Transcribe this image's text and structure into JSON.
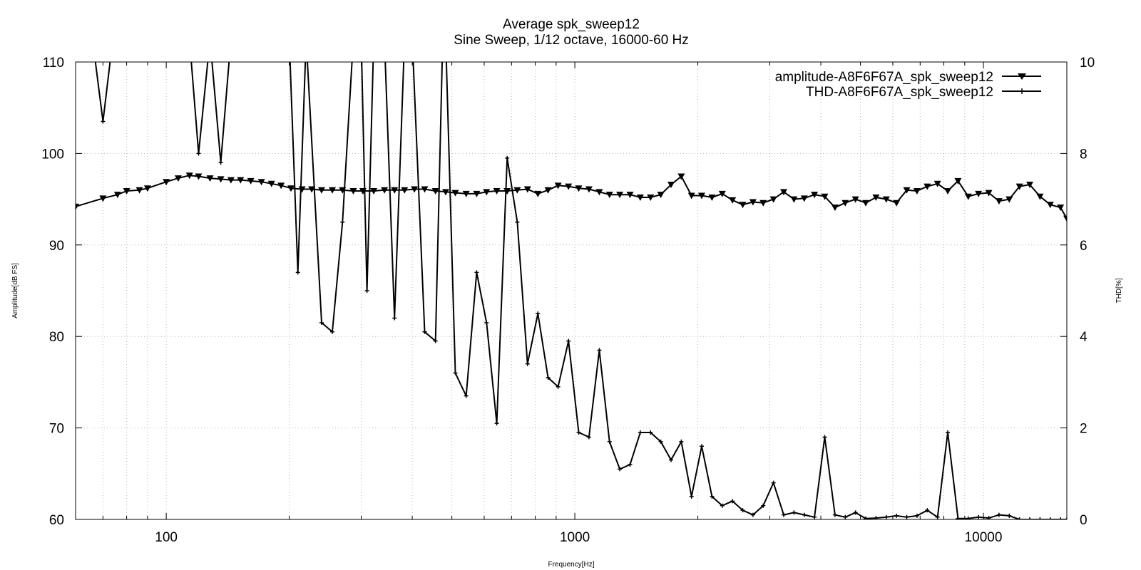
{
  "chart_data": {
    "type": "line",
    "title": "Average spk_sweep12",
    "subtitle": "Sine Sweep, 1/12 octave, 16000-60 Hz",
    "xlabel": "Frequency[Hz]",
    "ylabel": "Amplitude[dB FS]",
    "y2label": "THD[%]",
    "x_scale": "log",
    "xlim": [
      60,
      16000
    ],
    "ylim": [
      60,
      110
    ],
    "y2lim": [
      0,
      10
    ],
    "x_ticks": [
      100,
      1000,
      10000
    ],
    "y_ticks": [
      60,
      70,
      80,
      90,
      100,
      110
    ],
    "y2_ticks": [
      0,
      2,
      4,
      6,
      8,
      10
    ],
    "grid": true,
    "legend_position": "top-right",
    "series": [
      {
        "name": "amplitude-A8F6F67A_spk_sweep12",
        "axis": "left",
        "marker": "triangle-down",
        "x": [
          60,
          70,
          76,
          80,
          86,
          90,
          100,
          107,
          114,
          120,
          128,
          136,
          144,
          152,
          161,
          171,
          181,
          191,
          202,
          215,
          227,
          240,
          255,
          270,
          287,
          303,
          322,
          342,
          362,
          383,
          405,
          429,
          456,
          483,
          510,
          542,
          575,
          608,
          644,
          683,
          723,
          766,
          812,
          860,
          910,
          965,
          1022,
          1083,
          1148,
          1216,
          1288,
          1365,
          1446,
          1532,
          1623,
          1720,
          1822,
          1930,
          2044,
          2166,
          2295,
          2431,
          2576,
          2729,
          2891,
          3063,
          3245,
          3438,
          3643,
          3859,
          4089,
          4332,
          4590,
          4862,
          5152,
          5458,
          5783,
          6127,
          6491,
          6877,
          7286,
          7720,
          8179,
          8665,
          9180,
          9726,
          10305,
          10917,
          11567,
          12254,
          12983,
          13755,
          14573,
          15440,
          16000
        ],
        "values": [
          94.2,
          95.1,
          95.5,
          95.9,
          96.0,
          96.2,
          96.9,
          97.3,
          97.6,
          97.5,
          97.3,
          97.2,
          97.1,
          97.1,
          97.0,
          96.9,
          96.7,
          96.5,
          96.2,
          96.1,
          96.1,
          96.0,
          96.0,
          96.0,
          95.9,
          95.9,
          95.9,
          96.0,
          96.0,
          96.0,
          96.1,
          96.1,
          95.9,
          95.8,
          95.7,
          95.6,
          95.6,
          95.8,
          95.9,
          95.9,
          96.0,
          96.1,
          95.6,
          96.0,
          96.5,
          96.4,
          96.2,
          96.1,
          95.8,
          95.5,
          95.5,
          95.5,
          95.2,
          95.2,
          95.5,
          96.6,
          97.5,
          95.4,
          95.4,
          95.2,
          95.6,
          94.9,
          94.4,
          94.7,
          94.6,
          95.0,
          95.8,
          95.0,
          95.1,
          95.5,
          95.3,
          94.1,
          94.6,
          95.0,
          94.6,
          95.2,
          95.0,
          94.6,
          96.0,
          95.9,
          96.4,
          96.7,
          95.9,
          97.0,
          95.3,
          95.6,
          95.7,
          94.8,
          95.0,
          96.4,
          96.6,
          95.3,
          94.4,
          94.1,
          92.9
        ]
      },
      {
        "name": "THD-A8F6F67A_spk_sweep12",
        "axis": "right",
        "marker": "plus",
        "x": [
          66,
          70,
          74,
          114,
          120,
          128,
          136,
          144,
          200,
          210,
          220,
          240,
          255,
          270,
          287,
          300,
          310,
          322,
          342,
          362,
          383,
          400,
          429,
          456,
          475,
          483,
          510,
          542,
          575,
          608,
          644,
          683,
          723,
          766,
          812,
          860,
          910,
          965,
          1022,
          1083,
          1148,
          1216,
          1288,
          1365,
          1446,
          1532,
          1623,
          1720,
          1822,
          1930,
          2044,
          2166,
          2295,
          2431,
          2576,
          2729,
          2891,
          3063,
          3245,
          3438,
          3643,
          3859,
          4089,
          4332,
          4590,
          4862,
          5152,
          5458,
          5783,
          6127,
          6491,
          6877,
          7286,
          7720,
          8179,
          8665,
          9180,
          9726,
          10305,
          10917,
          11567,
          12254,
          12983,
          13755,
          14573,
          15440,
          16000
        ],
        "values": [
          10.5,
          8.7,
          10.5,
          10.5,
          8.0,
          10.5,
          7.8,
          10.5,
          10.5,
          5.4,
          10.5,
          4.3,
          4.1,
          6.5,
          10.5,
          10.5,
          5.0,
          10.5,
          10.5,
          4.4,
          10.5,
          10.5,
          4.1,
          3.9,
          10.5,
          10.5,
          3.2,
          2.7,
          5.4,
          4.3,
          2.1,
          7.9,
          6.5,
          3.4,
          4.5,
          3.1,
          2.9,
          3.9,
          1.9,
          1.8,
          3.7,
          1.7,
          1.1,
          1.2,
          1.9,
          1.9,
          1.7,
          1.3,
          1.7,
          0.5,
          1.6,
          0.5,
          0.3,
          0.4,
          0.2,
          0.1,
          0.3,
          0.8,
          0.1,
          0.15,
          0.1,
          0.05,
          1.8,
          0.1,
          0.05,
          0.15,
          0.02,
          0.03,
          0.05,
          0.08,
          0.05,
          0.08,
          0.2,
          0.05,
          1.9,
          0.02,
          0.02,
          0.05,
          0.03,
          0.1,
          0.08,
          0.0,
          0.0,
          0.0,
          0.0,
          0.0,
          0.0
        ]
      }
    ]
  }
}
